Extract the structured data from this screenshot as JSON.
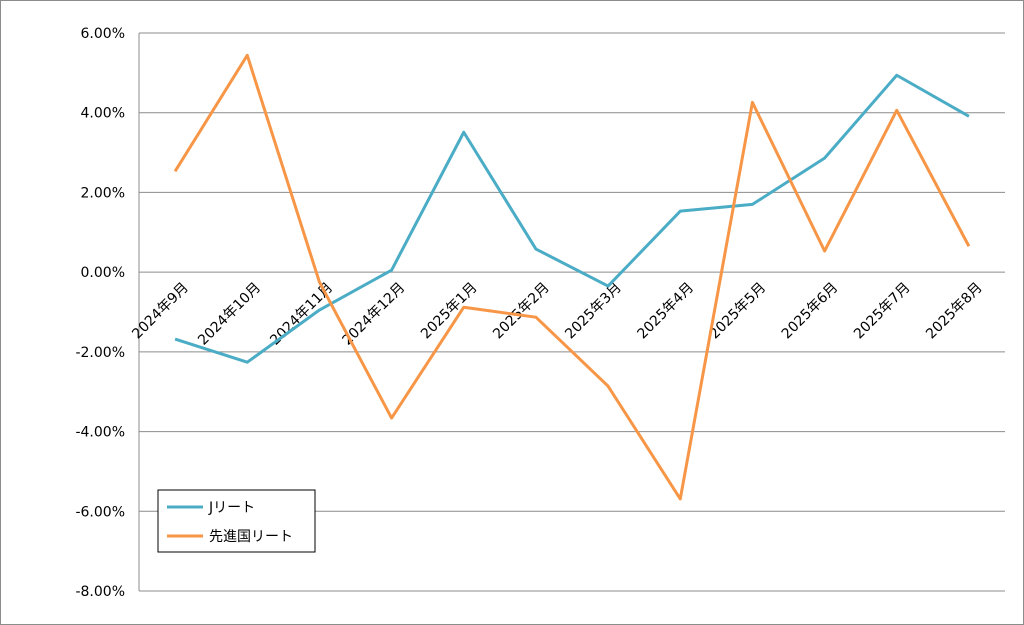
{
  "chart_data": {
    "type": "line",
    "categories": [
      "2024年9月",
      "2024年10月",
      "2024年11月",
      "2024年12月",
      "2025年1月",
      "2025年2月",
      "2025年3月",
      "2025年4月",
      "2025年5月",
      "2025年6月",
      "2025年7月",
      "2025年8月"
    ],
    "series": [
      {
        "name": "Jリート",
        "color": "#4bacc6",
        "values": [
          -1.68,
          -2.26,
          -0.95,
          0.05,
          3.51,
          0.58,
          -0.35,
          1.53,
          1.7,
          2.86,
          4.94,
          3.91
        ]
      },
      {
        "name": "先進国リート",
        "color": "#f79646",
        "values": [
          2.53,
          5.44,
          -0.25,
          -3.66,
          -0.88,
          -1.13,
          -2.86,
          -5.69,
          4.26,
          0.53,
          4.06,
          0.65
        ]
      }
    ],
    "ylim": [
      -8,
      6
    ],
    "yticks": [
      "-8.00%",
      "-6.00%",
      "-4.00%",
      "-2.00%",
      "0.00%",
      "2.00%",
      "4.00%",
      "6.00%"
    ],
    "ytick_values": [
      -8,
      -6,
      -4,
      -2,
      0,
      2,
      4,
      6
    ],
    "grid": true,
    "legend": "bottom-left",
    "title": "",
    "xlabel": "",
    "ylabel": ""
  }
}
